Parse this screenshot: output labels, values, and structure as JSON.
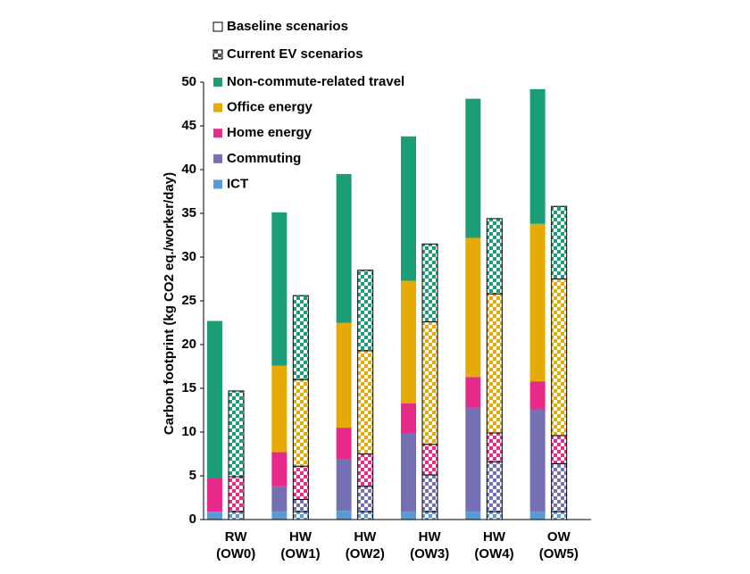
{
  "chart_data": {
    "type": "stacked_bar",
    "y_label": "Carbon footprint (kg CO2 eq./worker/day)",
    "scenarios": [
      "Baseline scenarios",
      "Current EV scenarios"
    ],
    "categories": [
      [
        "RW",
        "(OW0)"
      ],
      [
        "HW",
        "(OW1)"
      ],
      [
        "HW",
        "(OW2)"
      ],
      [
        "HW",
        "(OW3)"
      ],
      [
        "HW",
        "(OW4)"
      ],
      [
        "OW",
        "(OW5)"
      ]
    ],
    "series": [
      {
        "name": "ICT",
        "color": "#5b9bd5",
        "values": [
          0.9,
          0.9,
          1.0,
          0.9,
          0.9,
          0.9
        ],
        "ev_values": [
          0.9,
          0.9,
          0.9,
          0.9,
          0.9,
          0.9
        ]
      },
      {
        "name": "Commuting",
        "color": "#7570b3",
        "values": [
          0,
          2.9,
          5.9,
          9.0,
          11.9,
          11.7
        ],
        "ev_values": [
          0,
          1.4,
          2.9,
          4.2,
          5.7,
          5.5
        ]
      },
      {
        "name": "Home energy",
        "color": "#e7298a",
        "values": [
          3.9,
          3.9,
          3.6,
          3.4,
          3.5,
          3.2
        ],
        "ev_values": [
          4.0,
          3.8,
          3.7,
          3.5,
          3.3,
          3.2
        ]
      },
      {
        "name": "Office energy",
        "color": "#e6ab02",
        "values": [
          0,
          9.9,
          12.0,
          14.0,
          15.9,
          18.0
        ],
        "ev_values": [
          0,
          9.9,
          11.8,
          14.0,
          15.9,
          17.9
        ]
      },
      {
        "name": "Non-commute-related travel",
        "color": "#1b9e77",
        "values": [
          17.9,
          17.5,
          17.0,
          16.5,
          15.9,
          15.4
        ],
        "ev_values": [
          9.8,
          9.6,
          9.2,
          8.9,
          8.6,
          8.3
        ]
      }
    ],
    "ylim": [
      0,
      50
    ],
    "yticks": [
      0,
      5,
      10,
      15,
      20,
      25,
      30,
      35,
      40,
      45,
      50
    ],
    "grid": false
  }
}
